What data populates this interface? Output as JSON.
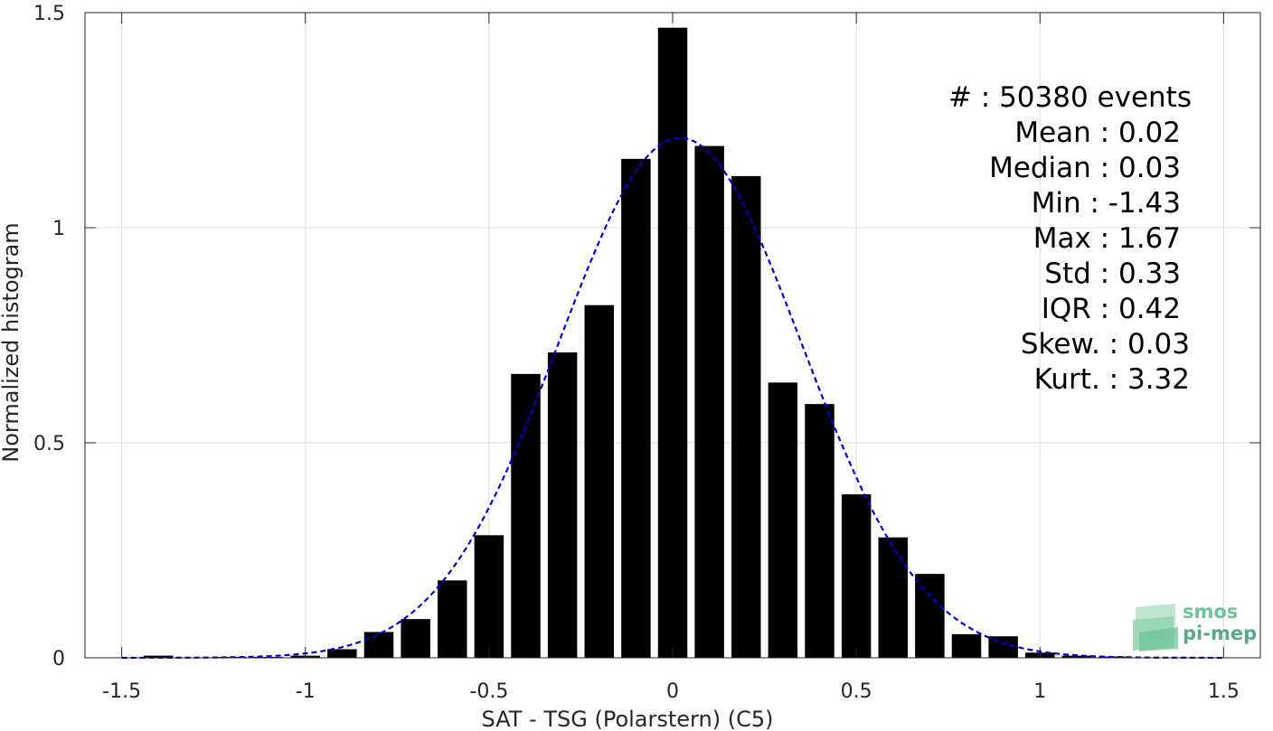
{
  "chart_data": {
    "type": "bar",
    "xlabel": "SAT - TSG (Polarstern) (C5)",
    "ylabel": "Normalized histogram",
    "xlim": [
      -1.6,
      1.6
    ],
    "ylim": [
      0,
      1.5
    ],
    "xticks": [
      "-1.5",
      "-1",
      "-0.5",
      "0",
      "0.5",
      "1",
      "1.5"
    ],
    "yticks": [
      "0",
      "0.5",
      "1",
      "1.5"
    ],
    "xtick_values": [
      -1.5,
      -1,
      -0.5,
      0,
      0.5,
      1,
      1.5
    ],
    "ytick_values": [
      0,
      0.5,
      1,
      1.5
    ],
    "grid": true,
    "bar_width": 0.08,
    "bar_color": "#000000",
    "bins": [
      -1.4,
      -1.3,
      -1.2,
      -1.1,
      -1.0,
      -0.9,
      -0.8,
      -0.7,
      -0.6,
      -0.5,
      -0.4,
      -0.3,
      -0.2,
      -0.1,
      0.0,
      0.1,
      0.2,
      0.3,
      0.4,
      0.5,
      0.6,
      0.7,
      0.8,
      0.9,
      1.0,
      1.1,
      1.2,
      1.3
    ],
    "values": [
      0.005,
      0.001,
      0.002,
      0.002,
      0.005,
      0.02,
      0.06,
      0.09,
      0.18,
      0.285,
      0.66,
      0.71,
      0.82,
      1.16,
      1.465,
      1.19,
      1.12,
      0.64,
      0.59,
      0.38,
      0.28,
      0.195,
      0.055,
      0.05,
      0.012,
      0.005,
      0.003,
      0.001
    ],
    "fit_curve": {
      "style": "dashed",
      "color": "#0000cc",
      "mean": 0.02,
      "std": 0.33,
      "x_range": [
        -1.5,
        1.5
      ]
    },
    "stats": [
      {
        "label": "#  :",
        "value": "50380 events"
      },
      {
        "label": "Mean :",
        "value": "0.02"
      },
      {
        "label": "Median :",
        "value": "0.03"
      },
      {
        "label": "Min :",
        "value": "-1.43"
      },
      {
        "label": "Max :",
        "value": "1.67"
      },
      {
        "label": "Std :",
        "value": "0.33"
      },
      {
        "label": "IQR :",
        "value": "0.42"
      },
      {
        "label": "Skew. :",
        "value": "0.03"
      },
      {
        "label": "Kurt. :",
        "value": "3.32"
      }
    ]
  },
  "logo": {
    "line1": "smos",
    "line2": "pi-mep",
    "color": "#6fc39a"
  }
}
